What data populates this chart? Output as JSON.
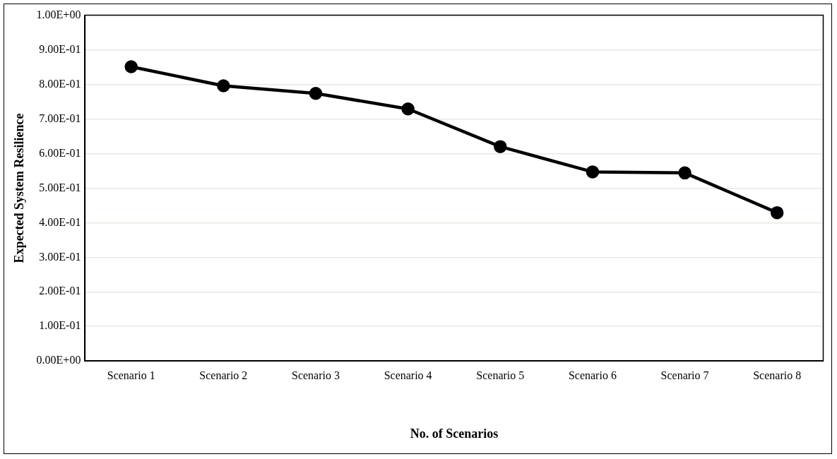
{
  "chart_data": {
    "type": "line",
    "xlabel": "No. of Scenarios",
    "ylabel": "Expected System Resilience",
    "categories": [
      "Scenario 1",
      "Scenario 2",
      "Scenario 3",
      "Scenario 4",
      "Scenario 5",
      "Scenario 6",
      "Scenario 7",
      "Scenario 8"
    ],
    "series": [
      {
        "color": "#000000",
        "values": [
          0.851,
          0.796,
          0.774,
          0.729,
          0.62,
          0.547,
          0.544,
          0.429
        ]
      }
    ],
    "ylim": [
      0,
      1
    ],
    "yticks": [
      {
        "value": 0,
        "label": "0.00E+00"
      },
      {
        "value": 0.1,
        "label": "1.00E-01"
      },
      {
        "value": 0.2,
        "label": "2.00E-01"
      },
      {
        "value": 0.3,
        "label": "3.00E-01"
      },
      {
        "value": 0.4,
        "label": "4.00E-01"
      },
      {
        "value": 0.5,
        "label": "5.00E-01"
      },
      {
        "value": 0.6,
        "label": "6.00E-01"
      },
      {
        "value": 0.7,
        "label": "7.00E-01"
      },
      {
        "value": 0.8,
        "label": "8.00E-01"
      },
      {
        "value": 0.9,
        "label": "9.00E-01"
      },
      {
        "value": 1,
        "label": "1.00E+00"
      }
    ],
    "grid": "y",
    "legend": false,
    "marker": "circle",
    "line_style": "solid"
  }
}
